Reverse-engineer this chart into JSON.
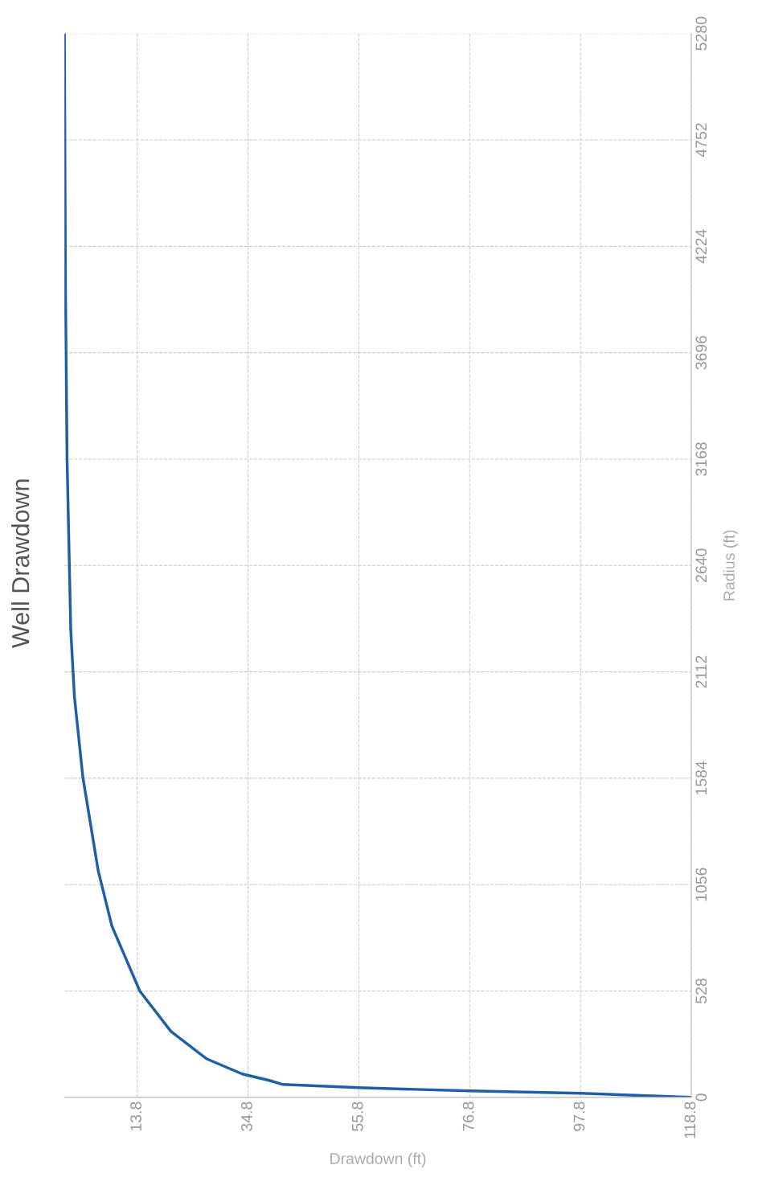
{
  "chart_data": {
    "type": "line",
    "title": "Well Drawdown",
    "xlabel": "Drawdown (ft)",
    "ylabel": "Radius (ft)",
    "x": [
      0,
      0.2,
      0.5,
      1.2,
      1.9,
      3.5,
      6.4,
      9,
      14.3,
      20.2,
      26.9,
      33.7,
      38.8,
      41.4,
      55.7,
      76.8,
      97.8,
      118.8
    ],
    "series": [
      {
        "color": "#1f5fa8",
        "values": [
          5280,
          4000,
          3168,
          2320,
          1987,
          1588,
          1125,
          850,
          527,
          327,
          192,
          116,
          84,
          64,
          48,
          32,
          20,
          0
        ]
      }
    ],
    "xlim": [
      0,
      118.8
    ],
    "xticks": [
      13.8,
      34.8,
      55.8,
      76.8,
      97.8,
      118.8
    ],
    "ylim": [
      0,
      5280
    ],
    "yticks": [
      0,
      528,
      1056,
      1584,
      2112,
      2640,
      3168,
      3696,
      4224,
      4752,
      5280
    ],
    "grid": true,
    "legend": false,
    "marker": "none",
    "line_style": "solid"
  }
}
